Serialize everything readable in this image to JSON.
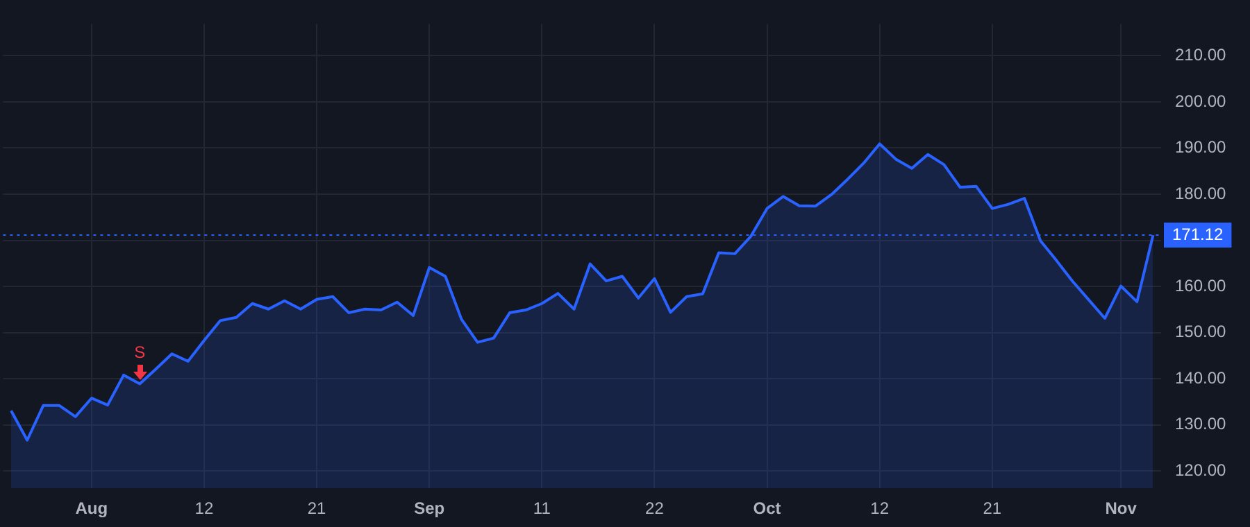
{
  "chart_data": {
    "type": "area",
    "categories": [
      null,
      null,
      null,
      null,
      null,
      "Aug",
      null,
      null,
      null,
      null,
      null,
      null,
      "12",
      null,
      null,
      null,
      null,
      null,
      null,
      "21",
      null,
      null,
      null,
      null,
      null,
      null,
      "Sep",
      null,
      null,
      null,
      null,
      null,
      null,
      "11",
      null,
      null,
      null,
      null,
      null,
      null,
      "22",
      null,
      null,
      null,
      null,
      null,
      null,
      "Oct",
      null,
      null,
      null,
      null,
      null,
      null,
      "12",
      null,
      null,
      null,
      null,
      null,
      null,
      "21",
      null,
      null,
      null,
      null,
      null,
      null,
      null,
      "Nov",
      null,
      null
    ],
    "series": [
      {
        "color": "#2962ff",
        "values": [
          133.1,
          126.7,
          134.2,
          134.2,
          131.8,
          135.8,
          134.3,
          140.8,
          138.9,
          142.1,
          145.4,
          143.8,
          148.3,
          152.6,
          153.3,
          156.3,
          155.1,
          156.9,
          155.1,
          157.2,
          157.8,
          154.3,
          155.1,
          154.9,
          156.6,
          153.7,
          164.1,
          162.2,
          152.9,
          147.9,
          148.8,
          154.3,
          154.9,
          156.3,
          158.5,
          155.1,
          164.9,
          161.2,
          162.2,
          157.5,
          161.7,
          154.4,
          157.8,
          158.4,
          167.3,
          167.1,
          170.9,
          176.9,
          179.5,
          177.5,
          177.4,
          179.9,
          183.2,
          186.7,
          190.9,
          187.6,
          185.6,
          188.6,
          186.4,
          181.5,
          181.7,
          176.9,
          177.8,
          179.1,
          169.9,
          165.6,
          161.1,
          157.1,
          153.1,
          160.1,
          156.7,
          171.12
        ]
      }
    ],
    "ylim": [
      116.3,
      216.9
    ],
    "yticks": [
      {
        "value": 120,
        "label": "120.00"
      },
      {
        "value": 130,
        "label": "130.00"
      },
      {
        "value": 140,
        "label": "140.00"
      },
      {
        "value": 150,
        "label": "150.00"
      },
      {
        "value": 160,
        "label": "160.00"
      },
      {
        "value": 170,
        "label": null
      },
      {
        "value": 180,
        "label": "180.00"
      },
      {
        "value": 190,
        "label": "190.00"
      },
      {
        "value": 200,
        "label": "200.00"
      },
      {
        "value": 210,
        "label": "210.00"
      }
    ],
    "grid": true,
    "legend": false,
    "marker": "none",
    "line_style": "solid",
    "ref_lines": [
      {
        "axis": "y",
        "value": 171.12,
        "label": "171.12",
        "color": "#2962ff",
        "line_style": "dotted"
      }
    ],
    "annotations": [
      {
        "text": "S",
        "y": 138.9
      }
    ]
  }
}
